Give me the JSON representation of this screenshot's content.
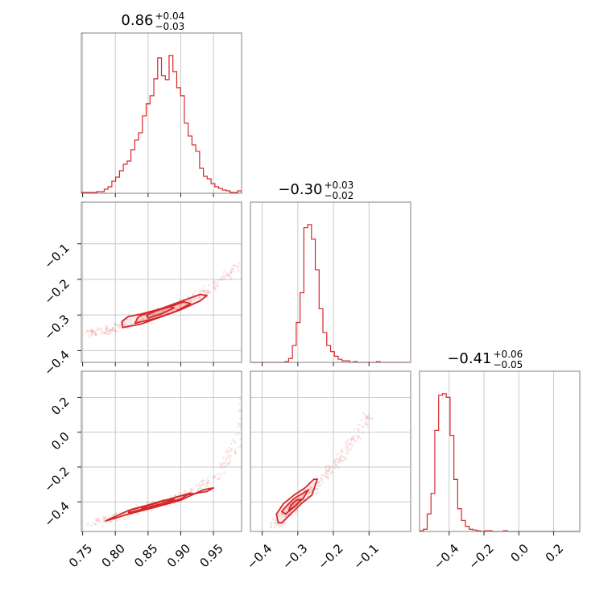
{
  "chart_data": {
    "type": "corner",
    "color": "#d62728",
    "parameters": [
      {
        "title": {
          "median": "0.86",
          "plus": "+0.04",
          "minus": "−0.03"
        },
        "range": [
          0.748,
          0.993
        ],
        "ticks": [
          0.75,
          0.8,
          0.85,
          0.9,
          0.95
        ],
        "tick_labels": [
          "0.75",
          "0.80",
          "0.85",
          "0.90",
          "0.95"
        ],
        "hist": [
          1,
          1,
          1,
          1,
          2,
          2,
          5,
          8,
          15,
          20,
          28,
          36,
          40,
          54,
          66,
          75,
          96,
          111,
          121,
          142,
          168,
          146,
          141,
          171,
          151,
          131,
          121,
          87,
          71,
          60,
          52,
          31,
          21,
          18,
          12,
          8,
          6,
          4,
          3,
          1,
          1,
          3
        ]
      },
      {
        "title": {
          "median": "−0.30",
          "plus": "+0.03",
          "minus": "−0.02"
        },
        "range": [
          -0.433,
          0.017
        ],
        "ticks": [
          -0.4,
          -0.3,
          -0.2,
          -0.1
        ],
        "tick_labels": [
          "−0.4",
          "−0.3",
          "−0.2",
          "−0.1"
        ],
        "hist": [
          0,
          0,
          0,
          0,
          0,
          0,
          0,
          0,
          0,
          1,
          5,
          22,
          52,
          91,
          176,
          180,
          161,
          121,
          70,
          39,
          22,
          14,
          8,
          4,
          2,
          2,
          0,
          1,
          0,
          0,
          0,
          0,
          0,
          1,
          0,
          0,
          0,
          0,
          0,
          0,
          0,
          0
        ]
      },
      {
        "title": {
          "median": "−0.41",
          "plus": "+0.06",
          "minus": "−0.05"
        },
        "range": [
          -0.57,
          0.35
        ],
        "ticks": [
          -0.4,
          -0.2,
          0.0,
          0.2
        ],
        "tick_labels": [
          "−0.4",
          "−0.2",
          "0.0",
          "0.2"
        ],
        "hist": [
          1,
          3,
          24,
          52,
          138,
          186,
          188,
          183,
          131,
          71,
          31,
          15,
          7,
          3,
          2,
          1,
          0,
          1,
          1,
          0,
          0,
          0,
          1,
          0,
          0,
          0,
          0,
          0,
          0,
          0,
          0,
          0,
          0,
          0,
          0,
          0,
          0,
          0,
          0,
          0,
          0,
          0
        ]
      }
    ],
    "pairs": [
      {
        "x_param": 0,
        "y_param": 1,
        "curve": [
          [
            0.76,
            -0.355
          ],
          [
            0.8,
            -0.335
          ],
          [
            0.85,
            -0.307
          ],
          [
            0.9,
            -0.272
          ],
          [
            0.95,
            -0.22
          ],
          [
            0.99,
            -0.16
          ]
        ],
        "contours": [
          [
            [
              0.811,
              -0.335
            ],
            [
              0.84,
              -0.325
            ],
            [
              0.87,
              -0.305
            ],
            [
              0.9,
              -0.285
            ],
            [
              0.93,
              -0.26
            ],
            [
              0.94,
              -0.245
            ],
            [
              0.93,
              -0.242
            ],
            [
              0.9,
              -0.262
            ],
            [
              0.87,
              -0.282
            ],
            [
              0.84,
              -0.297
            ],
            [
              0.82,
              -0.304
            ],
            [
              0.81,
              -0.318
            ]
          ],
          [
            [
              0.83,
              -0.323
            ],
            [
              0.86,
              -0.31
            ],
            [
              0.89,
              -0.292
            ],
            [
              0.915,
              -0.268
            ],
            [
              0.905,
              -0.263
            ],
            [
              0.88,
              -0.279
            ],
            [
              0.85,
              -0.293
            ],
            [
              0.835,
              -0.305
            ]
          ],
          [
            [
              0.85,
              -0.309
            ],
            [
              0.87,
              -0.297
            ],
            [
              0.89,
              -0.28
            ],
            [
              0.88,
              -0.276
            ],
            [
              0.86,
              -0.29
            ],
            [
              0.848,
              -0.3
            ]
          ]
        ]
      },
      {
        "x_param": 0,
        "y_param": 2,
        "curve": [
          [
            0.76,
            -0.53
          ],
          [
            0.8,
            -0.49
          ],
          [
            0.85,
            -0.43
          ],
          [
            0.9,
            -0.37
          ],
          [
            0.95,
            -0.27
          ],
          [
            0.99,
            -0.05
          ],
          [
            1.0,
            0.2
          ]
        ],
        "contours": [
          [
            [
              0.785,
              -0.51
            ],
            [
              0.82,
              -0.47
            ],
            [
              0.86,
              -0.432
            ],
            [
              0.9,
              -0.39
            ],
            [
              0.935,
              -0.33
            ],
            [
              0.95,
              -0.32
            ],
            [
              0.94,
              -0.34
            ],
            [
              0.9,
              -0.365
            ],
            [
              0.86,
              -0.41
            ],
            [
              0.82,
              -0.45
            ],
            [
              0.79,
              -0.5
            ]
          ],
          [
            [
              0.82,
              -0.462
            ],
            [
              0.86,
              -0.425
            ],
            [
              0.9,
              -0.383
            ],
            [
              0.915,
              -0.35
            ],
            [
              0.9,
              -0.365
            ],
            [
              0.86,
              -0.408
            ],
            [
              0.823,
              -0.445
            ]
          ],
          [
            [
              0.84,
              -0.44
            ],
            [
              0.87,
              -0.412
            ],
            [
              0.89,
              -0.385
            ],
            [
              0.875,
              -0.39
            ],
            [
              0.85,
              -0.418
            ]
          ]
        ]
      },
      {
        "x_param": 1,
        "y_param": 2,
        "curve": [
          [
            -0.37,
            -0.55
          ],
          [
            -0.33,
            -0.47
          ],
          [
            -0.3,
            -0.41
          ],
          [
            -0.25,
            -0.31
          ],
          [
            -0.2,
            -0.19
          ],
          [
            -0.15,
            -0.07
          ],
          [
            -0.1,
            0.1
          ]
        ],
        "contours": [
          [
            [
              -0.345,
              -0.52
            ],
            [
              -0.32,
              -0.47
            ],
            [
              -0.29,
              -0.41
            ],
            [
              -0.26,
              -0.36
            ],
            [
              -0.245,
              -0.27
            ],
            [
              -0.255,
              -0.27
            ],
            [
              -0.28,
              -0.32
            ],
            [
              -0.31,
              -0.36
            ],
            [
              -0.34,
              -0.41
            ],
            [
              -0.36,
              -0.47
            ],
            [
              -0.355,
              -0.52
            ]
          ],
          [
            [
              -0.335,
              -0.47
            ],
            [
              -0.31,
              -0.43
            ],
            [
              -0.285,
              -0.38
            ],
            [
              -0.27,
              -0.33
            ],
            [
              -0.285,
              -0.35
            ],
            [
              -0.31,
              -0.38
            ],
            [
              -0.33,
              -0.42
            ],
            [
              -0.345,
              -0.455
            ]
          ],
          [
            [
              -0.325,
              -0.45
            ],
            [
              -0.305,
              -0.42
            ],
            [
              -0.29,
              -0.385
            ],
            [
              -0.305,
              -0.39
            ],
            [
              -0.32,
              -0.42
            ]
          ]
        ]
      }
    ]
  }
}
